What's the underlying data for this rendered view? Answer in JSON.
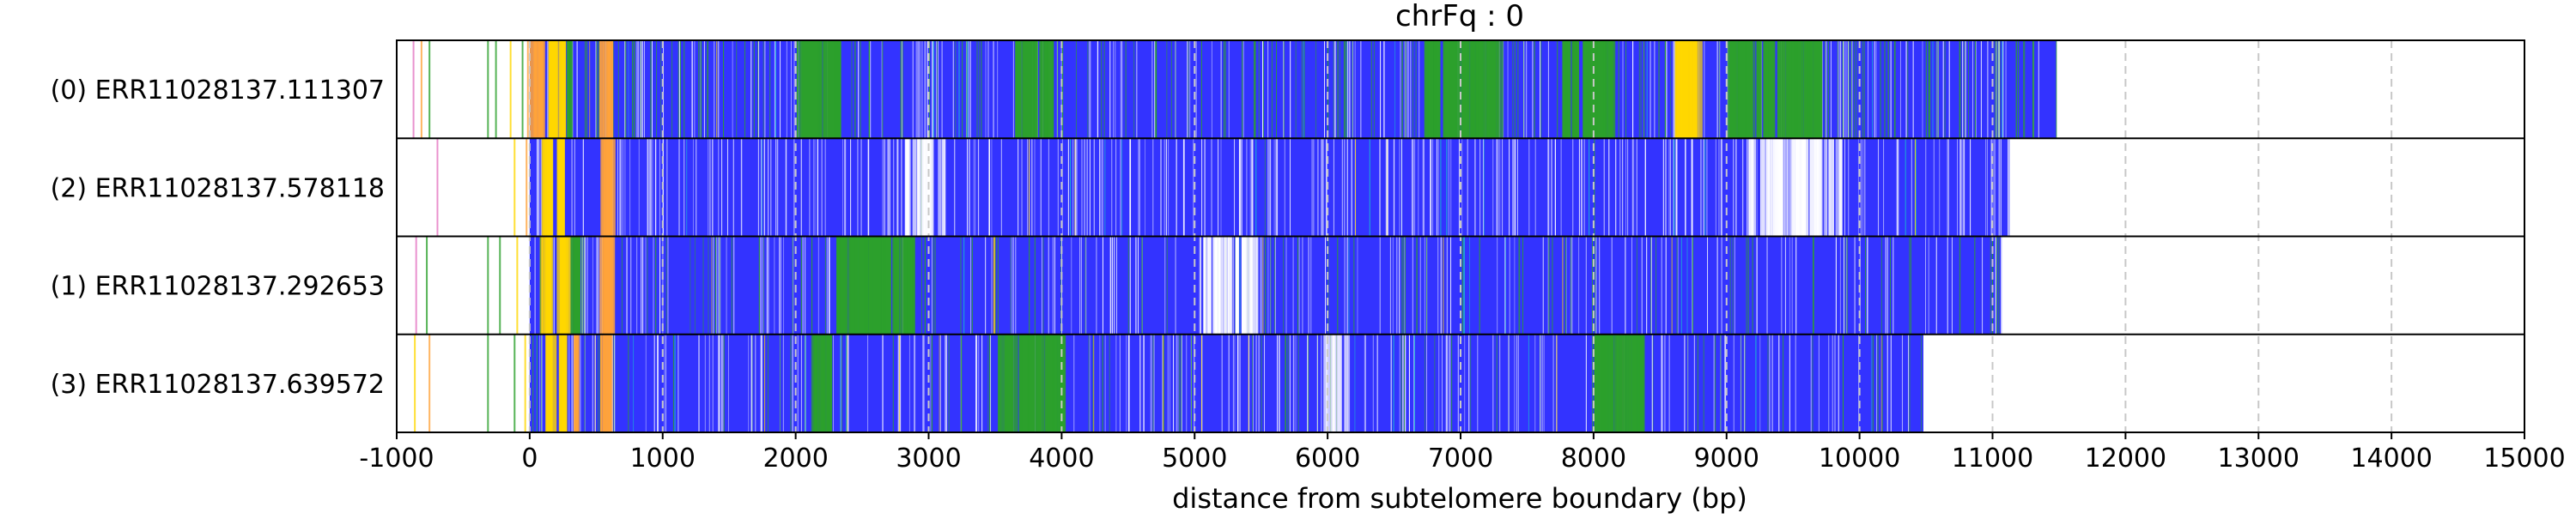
{
  "chart_data": {
    "type": "heatmap",
    "title": "chrFq : 0",
    "xlabel": "distance from subtelomere boundary (bp)",
    "ylabel": "",
    "xlim": [
      -1000,
      15000
    ],
    "x_ticks": [
      -1000,
      0,
      1000,
      2000,
      3000,
      4000,
      5000,
      6000,
      7000,
      8000,
      9000,
      10000,
      11000,
      12000,
      13000,
      14000,
      15000
    ],
    "grid": "vertical dashed at each x tick",
    "legend": "none",
    "colors": {
      "repeat": "#3333ff",
      "variant": "#2ca02c",
      "yellow": "#ffd700",
      "orange": "#ffa33a",
      "pink": "#e377c2",
      "cyan": "#17becf",
      "gap": "#ffffff",
      "grid": "#c8c8c8",
      "frame": "#000000"
    },
    "reads": [
      {
        "label": "(0) ERR11028137.111307",
        "start": -900,
        "end": 11480,
        "repeat_start": 0,
        "leading_marks": [
          {
            "x": -880,
            "color": "pink"
          },
          {
            "x": -820,
            "color": "orange"
          },
          {
            "x": -760,
            "color": "variant"
          },
          {
            "x": -320,
            "color": "variant"
          },
          {
            "x": -260,
            "color": "variant"
          },
          {
            "x": -150,
            "color": "yellow"
          },
          {
            "x": -60,
            "color": "variant"
          },
          {
            "x": -20,
            "color": "orange"
          }
        ],
        "segments": [
          {
            "from": 0,
            "to": 100,
            "color": "orange"
          },
          {
            "from": 120,
            "to": 200,
            "color": "yellow"
          },
          {
            "from": 210,
            "to": 240,
            "color": "yellow"
          },
          {
            "from": 260,
            "to": 300,
            "color": "variant"
          },
          {
            "from": 520,
            "to": 590,
            "color": "orange"
          },
          {
            "from": 2000,
            "to": 2300,
            "color": "variant"
          },
          {
            "from": 3650,
            "to": 3900,
            "color": "variant"
          },
          {
            "from": 6700,
            "to": 7300,
            "color": "variant"
          },
          {
            "from": 7750,
            "to": 8150,
            "color": "variant"
          },
          {
            "from": 8600,
            "to": 8800,
            "color": "yellow"
          },
          {
            "from": 9000,
            "to": 9700,
            "color": "variant"
          }
        ],
        "stripe_density": 0.55,
        "green_share": 0.45
      },
      {
        "label": "(2) ERR11028137.578118",
        "start": -900,
        "end": 11130,
        "repeat_start": 0,
        "leading_marks": [
          {
            "x": -700,
            "color": "pink"
          },
          {
            "x": -120,
            "color": "yellow"
          },
          {
            "x": -30,
            "color": "orange"
          }
        ],
        "segments": [
          {
            "from": 80,
            "to": 160,
            "color": "yellow"
          },
          {
            "from": 200,
            "to": 250,
            "color": "yellow"
          },
          {
            "from": 520,
            "to": 600,
            "color": "orange"
          },
          {
            "from": 2750,
            "to": 3100,
            "color": "gap"
          },
          {
            "from": 9150,
            "to": 9850,
            "color": "gap"
          }
        ],
        "stripe_density": 0.45,
        "green_share": 0.02
      },
      {
        "label": "(1) ERR11028137.292653",
        "start": -900,
        "end": 11070,
        "repeat_start": 0,
        "leading_marks": [
          {
            "x": -860,
            "color": "pink"
          },
          {
            "x": -780,
            "color": "variant"
          },
          {
            "x": -320,
            "color": "variant"
          },
          {
            "x": -230,
            "color": "variant"
          },
          {
            "x": -100,
            "color": "yellow"
          }
        ],
        "segments": [
          {
            "from": 80,
            "to": 140,
            "color": "yellow"
          },
          {
            "from": 200,
            "to": 260,
            "color": "yellow"
          },
          {
            "from": 300,
            "to": 340,
            "color": "variant"
          },
          {
            "from": 520,
            "to": 600,
            "color": "orange"
          },
          {
            "from": 2300,
            "to": 2850,
            "color": "variant"
          },
          {
            "from": 5000,
            "to": 5500,
            "color": "gap"
          }
        ],
        "stripe_density": 0.4,
        "green_share": 0.35
      },
      {
        "label": "(3) ERR11028137.639572",
        "start": -900,
        "end": 10480,
        "repeat_start": 0,
        "leading_marks": [
          {
            "x": -870,
            "color": "yellow"
          },
          {
            "x": -760,
            "color": "orange"
          },
          {
            "x": -320,
            "color": "variant"
          },
          {
            "x": -120,
            "color": "variant"
          },
          {
            "x": -40,
            "color": "yellow"
          }
        ],
        "segments": [
          {
            "from": 100,
            "to": 160,
            "color": "yellow"
          },
          {
            "from": 210,
            "to": 260,
            "color": "yellow"
          },
          {
            "from": 300,
            "to": 340,
            "color": "orange"
          },
          {
            "from": 520,
            "to": 600,
            "color": "orange"
          },
          {
            "from": 2100,
            "to": 2250,
            "color": "variant"
          },
          {
            "from": 3500,
            "to": 4000,
            "color": "variant"
          },
          {
            "from": 5950,
            "to": 6150,
            "color": "gap"
          },
          {
            "from": 8000,
            "to": 8350,
            "color": "variant"
          }
        ],
        "stripe_density": 0.45,
        "green_share": 0.25
      }
    ]
  }
}
